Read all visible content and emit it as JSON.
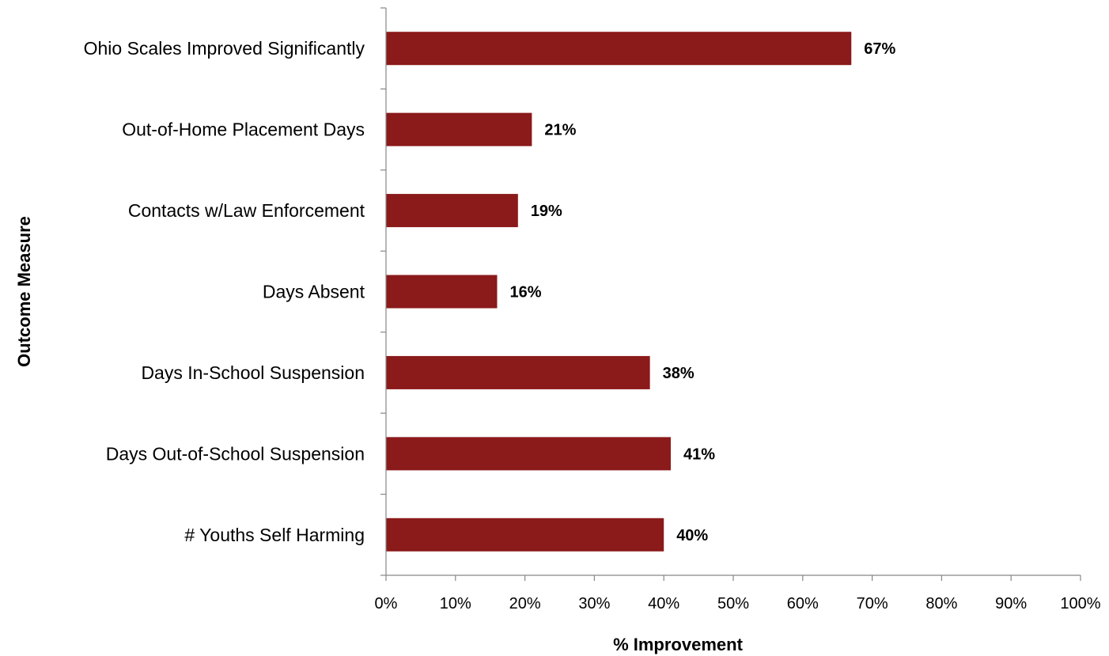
{
  "chart_data": {
    "type": "bar",
    "orientation": "horizontal",
    "categories": [
      "Ohio Scales Improved Significantly",
      "Out-of-Home Placement Days",
      "Contacts w/Law Enforcement",
      "Days Absent",
      "Days In-School Suspension",
      "Days Out-of-School Suspension",
      "# Youths Self Harming"
    ],
    "values": [
      67,
      21,
      19,
      16,
      38,
      41,
      40
    ],
    "data_labels": [
      "67%",
      "21%",
      "19%",
      "16%",
      "38%",
      "41%",
      "40%"
    ],
    "xlim": [
      0,
      100
    ],
    "x_ticks": [
      0,
      10,
      20,
      30,
      40,
      50,
      60,
      70,
      80,
      90,
      100
    ],
    "x_tick_labels": [
      "0%",
      "10%",
      "20%",
      "30%",
      "40%",
      "50%",
      "60%",
      "70%",
      "80%",
      "90%",
      "100%"
    ],
    "xlabel": "% Improvement",
    "ylabel": "Outcome Measure",
    "title": "",
    "grid": false,
    "legend": "none",
    "bar_color": "#8B1A1A",
    "axis_color": "#878787"
  }
}
